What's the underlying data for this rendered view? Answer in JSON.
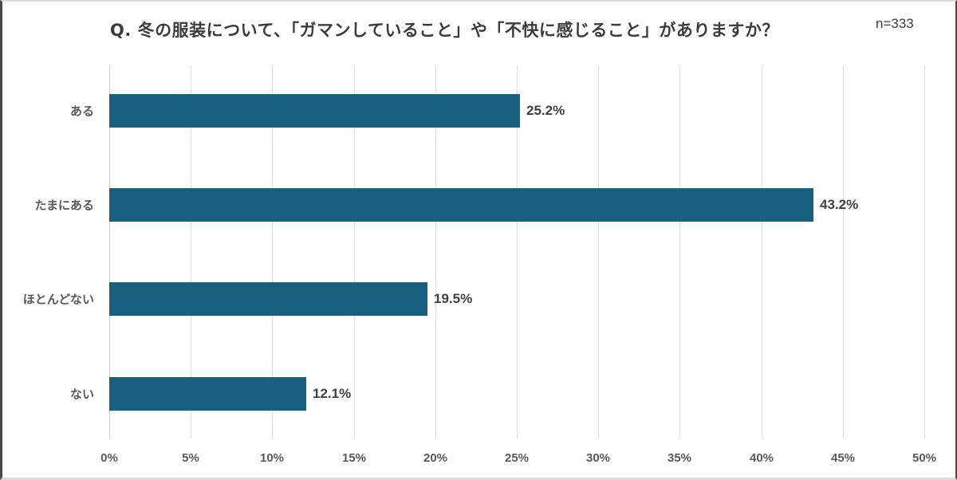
{
  "header": {
    "title": "Q. 冬の服装について、「ガマンしていること」や「不快に感じること」がありますか？",
    "sample_size": "n=333"
  },
  "colors": {
    "bar": "#17607f",
    "grid": "#dcdcdc",
    "text": "#3c3c3c",
    "axis_text": "#595959"
  },
  "chart_data": {
    "type": "bar",
    "orientation": "horizontal",
    "title": "Q. 冬の服装について、「ガマンしていること」や「不快に感じること」がありますか？",
    "annotation": "n=333",
    "categories": [
      "ある",
      "たまにある",
      "ほとんどない",
      "ない"
    ],
    "values": [
      25.2,
      43.2,
      19.5,
      12.1
    ],
    "value_labels": [
      "25.2%",
      "43.2%",
      "19.5%",
      "12.1%"
    ],
    "xlabel": "",
    "ylabel": "",
    "xlim": [
      0,
      50
    ],
    "x_ticks": [
      0,
      5,
      10,
      15,
      20,
      25,
      30,
      35,
      40,
      45,
      50
    ],
    "x_tick_labels": [
      "0%",
      "5%",
      "10%",
      "15%",
      "20%",
      "25%",
      "30%",
      "35%",
      "40%",
      "45%",
      "50%"
    ],
    "grid": "vertical",
    "legend": "none"
  }
}
